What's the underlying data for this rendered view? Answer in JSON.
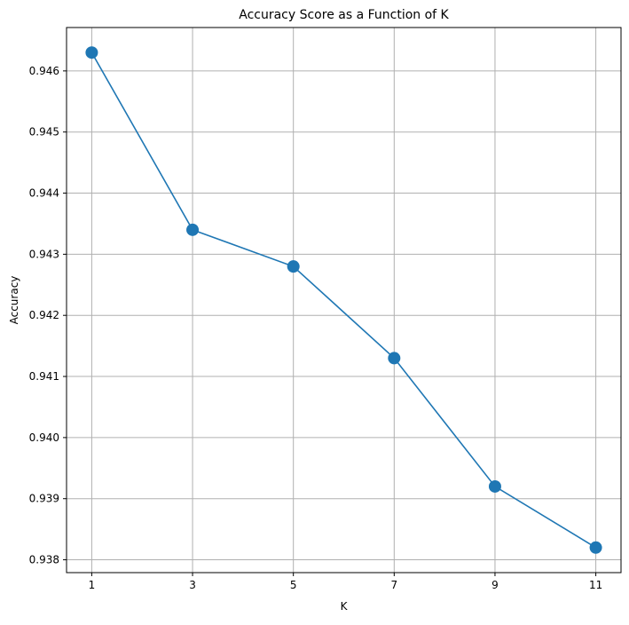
{
  "chart_data": {
    "type": "line",
    "title": "Accuracy Score as a Function of K",
    "xlabel": "K",
    "ylabel": "Accuracy",
    "x": [
      1,
      3,
      5,
      7,
      9,
      11
    ],
    "series": [
      {
        "values": [
          0.9463,
          0.9434,
          0.9428,
          0.9413,
          0.9392,
          0.9382
        ]
      }
    ],
    "x_ticks": [
      "1",
      "3",
      "5",
      "7",
      "9",
      "11"
    ],
    "y_ticks": [
      "0.938",
      "0.939",
      "0.940",
      "0.941",
      "0.942",
      "0.943",
      "0.944",
      "0.945",
      "0.946"
    ],
    "xlim": [
      0.5,
      11.5
    ],
    "ylim": [
      0.93779,
      0.94671
    ],
    "grid": true,
    "markers": true,
    "colors": {
      "line": "#1f77b4",
      "grid": "#b0b0b0",
      "axes": "#000000"
    }
  }
}
